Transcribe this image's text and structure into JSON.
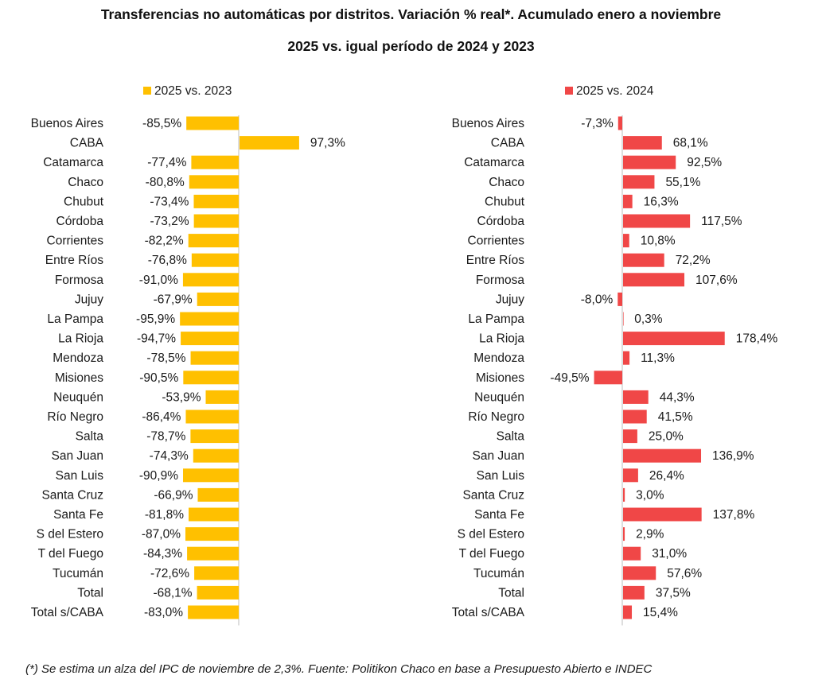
{
  "title_line1": "Transferencias no automáticas por distritos. Variación % real*. Acumulado enero a noviembre",
  "title_line2": "2025 vs. igual período de 2024 y 2023",
  "footnote": "(*) Se estima un alza del IPC de noviembre de 2,3%. Fuente: Politikon Chaco en base a Presupuesto Abierto e INDEC",
  "chart_data": [
    {
      "type": "bar",
      "orientation": "horizontal",
      "legend_position": "top",
      "categories": [
        "Buenos Aires",
        "CABA",
        "Catamarca",
        "Chaco",
        "Chubut",
        "Córdoba",
        "Corrientes",
        "Entre Ríos",
        "Formosa",
        "Jujuy",
        "La Pampa",
        "La Rioja",
        "Mendoza",
        "Misiones",
        "Neuquén",
        "Río Negro",
        "Salta",
        "San Juan",
        "San Luis",
        "Santa Cruz",
        "Santa Fe",
        "S del Estero",
        "T del Fuego",
        "Tucumán",
        "Total",
        "Total s/CABA"
      ],
      "series": [
        {
          "name": "2025 vs. 2023",
          "color": "#FFC000",
          "values": [
            -85.5,
            97.3,
            -77.4,
            -80.8,
            -73.4,
            -73.2,
            -82.2,
            -76.8,
            -91.0,
            -67.9,
            -95.9,
            -94.7,
            -78.5,
            -90.5,
            -53.9,
            -86.4,
            -78.7,
            -74.3,
            -90.9,
            -66.9,
            -81.8,
            -87.0,
            -84.3,
            -72.6,
            -68.1,
            -83.0
          ],
          "labels": [
            "-85,5%",
            "97,3%",
            "-77,4%",
            "-80,8%",
            "-73,4%",
            "-73,2%",
            "-82,2%",
            "-76,8%",
            "-91,0%",
            "-67,9%",
            "-95,9%",
            "-94,7%",
            "-78,5%",
            "-90,5%",
            "-53,9%",
            "-86,4%",
            "-78,7%",
            "-74,3%",
            "-90,9%",
            "-66,9%",
            "-81,8%",
            "-87,0%",
            "-84,3%",
            "-72,6%",
            "-68,1%",
            "-83,0%"
          ]
        }
      ]
    },
    {
      "type": "bar",
      "orientation": "horizontal",
      "legend_position": "top",
      "categories": [
        "Buenos Aires",
        "CABA",
        "Catamarca",
        "Chaco",
        "Chubut",
        "Córdoba",
        "Corrientes",
        "Entre Ríos",
        "Formosa",
        "Jujuy",
        "La Pampa",
        "La Rioja",
        "Mendoza",
        "Misiones",
        "Neuquén",
        "Río Negro",
        "Salta",
        "San Juan",
        "San Luis",
        "Santa Cruz",
        "Santa Fe",
        "S del Estero",
        "T del Fuego",
        "Tucumán",
        "Total",
        "Total s/CABA"
      ],
      "series": [
        {
          "name": "2025 vs. 2024",
          "color": "#F04747",
          "values": [
            -7.3,
            68.1,
            92.5,
            55.1,
            16.3,
            117.5,
            10.8,
            72.2,
            107.6,
            -8.0,
            0.3,
            178.4,
            11.3,
            -49.5,
            44.3,
            41.5,
            25.0,
            136.9,
            26.4,
            3.0,
            137.8,
            2.9,
            31.0,
            57.6,
            37.5,
            15.4
          ],
          "labels": [
            "-7,3%",
            "68,1%",
            "92,5%",
            "55,1%",
            "16,3%",
            "117,5%",
            "10,8%",
            "72,2%",
            "107,6%",
            "-8,0%",
            "0,3%",
            "178,4%",
            "11,3%",
            "-49,5%",
            "44,3%",
            "41,5%",
            "25,0%",
            "136,9%",
            "26,4%",
            "3,0%",
            "137,8%",
            "2,9%",
            "31,0%",
            "57,6%",
            "37,5%",
            "15,4%"
          ]
        }
      ]
    }
  ]
}
